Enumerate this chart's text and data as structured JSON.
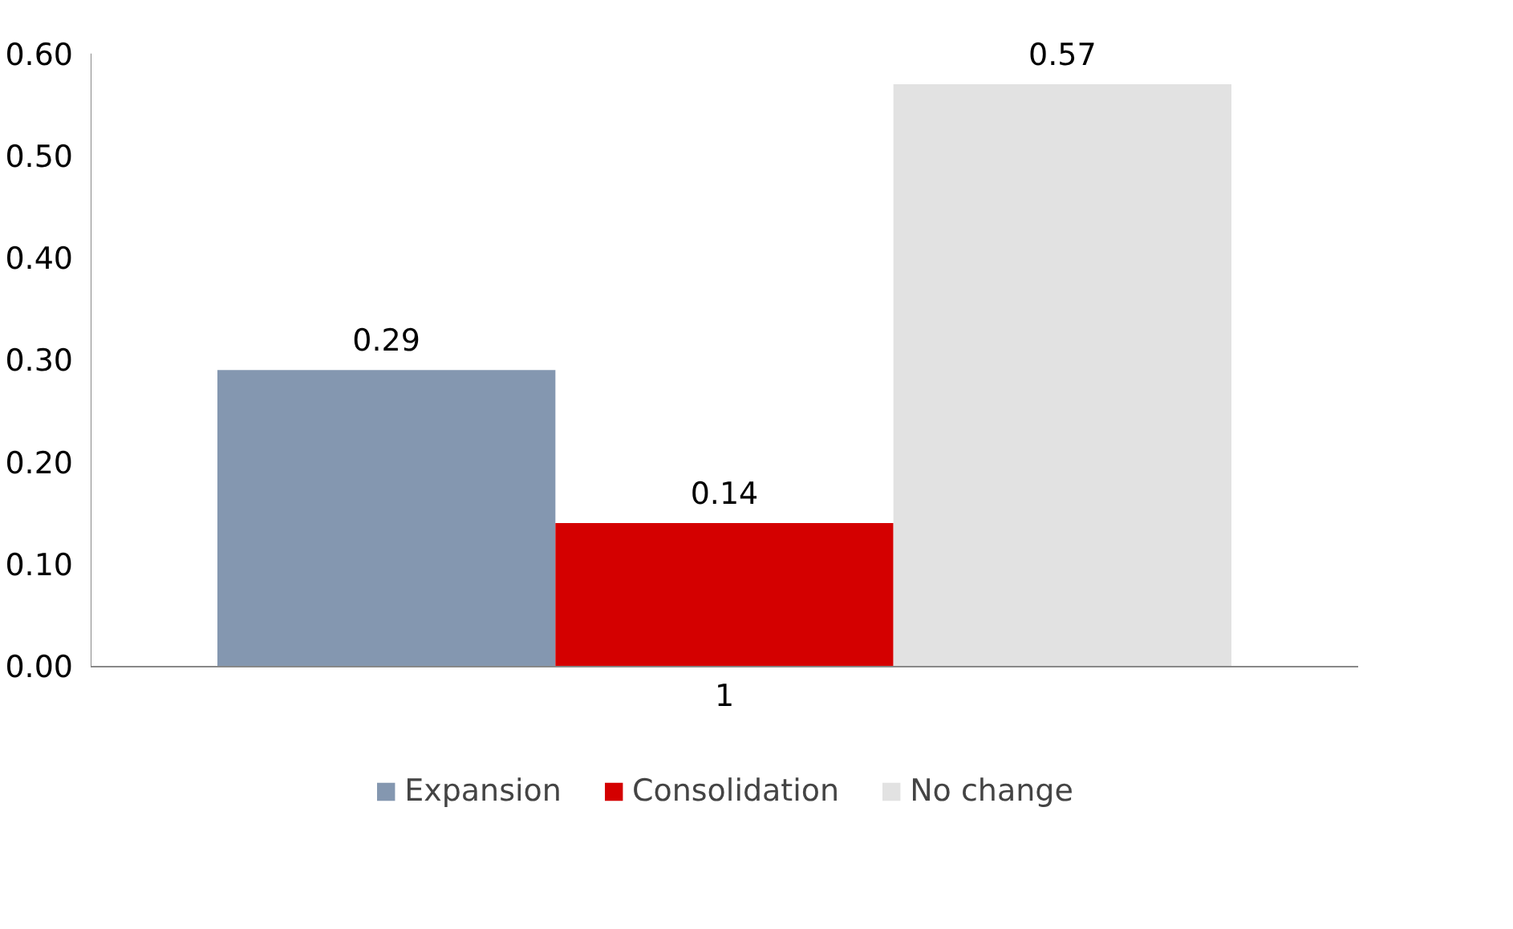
{
  "chart_data": {
    "type": "bar",
    "categories": [
      "1"
    ],
    "series": [
      {
        "name": "Expansion",
        "color": "#8497b0",
        "values": [
          0.29
        ]
      },
      {
        "name": "Consolidation",
        "color": "#d40000",
        "values": [
          0.14
        ]
      },
      {
        "name": "No change",
        "color": "#e2e2e2",
        "values": [
          0.57
        ]
      }
    ],
    "ylim": [
      0,
      0.6
    ],
    "yticks": [
      {
        "value": 0,
        "label": "0.00"
      },
      {
        "value": 0.1,
        "label": "0.10"
      },
      {
        "value": 0.2,
        "label": "0.20"
      },
      {
        "value": 0.3,
        "label": "0.30"
      },
      {
        "value": 0.4,
        "label": "0.40"
      },
      {
        "value": 0.5,
        "label": "0.50"
      },
      {
        "value": 0.6,
        "label": "0.60"
      }
    ],
    "grid": false,
    "data_labels": true,
    "legend": "bottom"
  }
}
